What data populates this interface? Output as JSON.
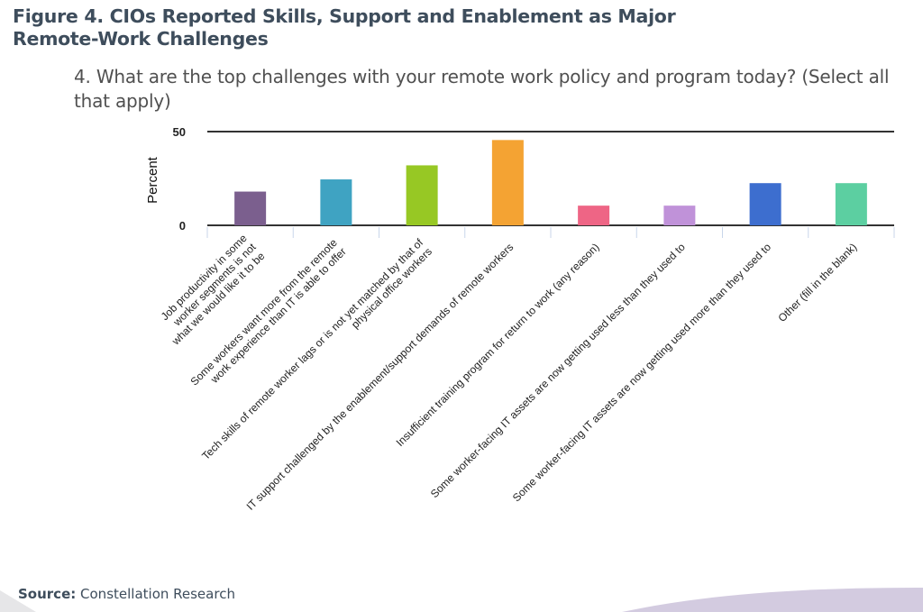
{
  "figure_title": "Figure 4. CIOs Reported Skills, Support and Enablement as Major Remote-Work Challenges",
  "question": "4. What are the top challenges with your remote work policy and program today? (Select all that apply)",
  "source_label": "Source:",
  "source_value": "Constellation Research",
  "chart_data": {
    "type": "bar",
    "title": "4. What are the top challenges with your remote work policy and program today? (Select all that apply)",
    "xlabel": "",
    "ylabel": "Percent",
    "ylim": [
      0,
      50
    ],
    "yticks": [
      0,
      50
    ],
    "grid": false,
    "categories": [
      [
        "Job productivity in some",
        "worker segments is not",
        "what we would like it to be"
      ],
      [
        "Some workers want more from the remote",
        "work experience than IT is able to offer"
      ],
      [
        "Tech skills of remote worker lags or is not yet matched by that of",
        "physical office workers"
      ],
      [
        "IT support challenged by the enablement/support demands of remote workers"
      ],
      [
        "Insufficient training program for return to work (any reason)"
      ],
      [
        "Some worker-facing IT assets are now getting used less than they used to"
      ],
      [
        "Some worker-facing IT assets are now getting used more than they used to"
      ],
      [
        "Other (fill in the blank)"
      ]
    ],
    "values": [
      18,
      24.5,
      32,
      45.5,
      10.5,
      10.5,
      22.5,
      22.5
    ],
    "colors": [
      "#7b5f8e",
      "#3fa3c2",
      "#97c824",
      "#f4a333",
      "#ee6585",
      "#c092d9",
      "#3d6ecf",
      "#5ccfa1"
    ]
  }
}
